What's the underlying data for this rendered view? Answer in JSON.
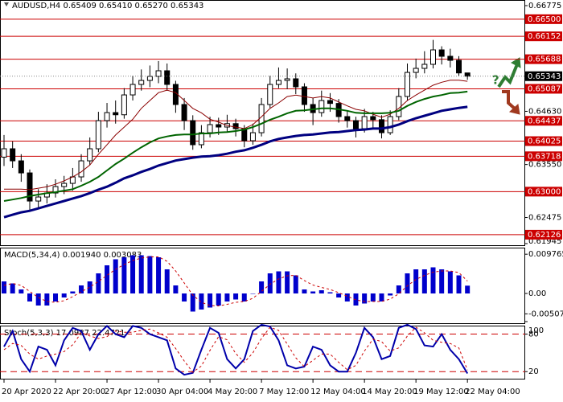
{
  "chart_data": [
    {
      "type": "candlestick",
      "title": "AUDUSD,H4  0.65409 0.65410 0.65270 0.65343",
      "annotation": "?",
      "categories": [
        "20 Apr 2020",
        null,
        null,
        null,
        null,
        null,
        "22 Apr 20:00",
        null,
        null,
        null,
        null,
        null,
        "27 Apr 12:00",
        null,
        null,
        null,
        null,
        null,
        "30 Apr 04:00",
        null,
        null,
        null,
        null,
        null,
        "4 May 20:00",
        null,
        null,
        null,
        null,
        null,
        "7 May 12:00",
        null,
        null,
        null,
        null,
        null,
        "12 May 04:00",
        null,
        null,
        null,
        null,
        null,
        "14 May 20:00",
        null,
        null,
        null,
        null,
        null,
        "19 May 12:00",
        null,
        null,
        null,
        null,
        null,
        "22 May 04:00"
      ],
      "open": [
        0.637,
        0.6387,
        0.63625,
        0.6338,
        0.62809,
        0.62891,
        0.62972,
        0.63103,
        0.63168,
        0.63299,
        0.63625,
        0.6387,
        0.64441,
        0.64604,
        0.6456,
        0.64963,
        0.65176,
        0.65257,
        0.65339,
        0.65453,
        0.65176,
        0.64768,
        0.64441,
        0.63952,
        0.64196,
        0.6436,
        0.64311,
        0.6438,
        0.64278,
        0.64033,
        0.64196,
        0.64768,
        0.65176,
        0.65257,
        0.6529,
        0.65127,
        0.64768,
        0.64604,
        0.64849,
        0.6479,
        0.64523,
        0.64441,
        0.64278,
        0.64523,
        0.6446,
        0.64196,
        0.64523,
        0.64931,
        0.6542,
        0.65502,
        0.65584,
        0.65877,
        0.65747,
        0.65665,
        0.65409
      ],
      "high": [
        0.6415,
        0.6402,
        0.6376,
        0.6345,
        0.6305,
        0.6315,
        0.6325,
        0.6332,
        0.6348,
        0.6376,
        0.641,
        0.6462,
        0.648,
        0.6485,
        0.651,
        0.6535,
        0.6548,
        0.6556,
        0.6565,
        0.656,
        0.6525,
        0.649,
        0.6455,
        0.6435,
        0.6452,
        0.645,
        0.6456,
        0.6448,
        0.6435,
        0.6438,
        0.649,
        0.6535,
        0.6552,
        0.655,
        0.654,
        0.652,
        0.649,
        0.6505,
        0.65,
        0.6488,
        0.6465,
        0.6452,
        0.6468,
        0.6462,
        0.6455,
        0.6465,
        0.651,
        0.656,
        0.657,
        0.6585,
        0.6608,
        0.6595,
        0.659,
        0.6575,
        0.6541
      ],
      "low": [
        0.6352,
        0.6348,
        0.632,
        0.626,
        0.6265,
        0.6276,
        0.6288,
        0.6295,
        0.6302,
        0.632,
        0.6354,
        0.638,
        0.643,
        0.6438,
        0.6448,
        0.6485,
        0.6505,
        0.6512,
        0.652,
        0.6505,
        0.646,
        0.6425,
        0.6385,
        0.6388,
        0.641,
        0.6415,
        0.642,
        0.6412,
        0.639,
        0.6395,
        0.6412,
        0.647,
        0.651,
        0.6508,
        0.6498,
        0.6462,
        0.6435,
        0.6452,
        0.6462,
        0.644,
        0.643,
        0.641,
        0.642,
        0.643,
        0.6408,
        0.6415,
        0.6445,
        0.6485,
        0.653,
        0.654,
        0.655,
        0.6558,
        0.6552,
        0.6535,
        0.6527
      ],
      "close": [
        0.6387,
        0.63625,
        0.6338,
        0.62809,
        0.62891,
        0.62972,
        0.63103,
        0.63168,
        0.63299,
        0.63625,
        0.6387,
        0.64441,
        0.64604,
        0.6456,
        0.64963,
        0.65176,
        0.65257,
        0.65339,
        0.65453,
        0.65176,
        0.64768,
        0.64441,
        0.63952,
        0.64196,
        0.6436,
        0.64311,
        0.6438,
        0.64278,
        0.64033,
        0.64196,
        0.64768,
        0.65176,
        0.65257,
        0.6529,
        0.65127,
        0.64768,
        0.64604,
        0.64849,
        0.6479,
        0.64523,
        0.64441,
        0.64278,
        0.64523,
        0.6446,
        0.64196,
        0.64523,
        0.64931,
        0.6542,
        0.65502,
        0.65584,
        0.65877,
        0.65747,
        0.65665,
        0.65409,
        0.65343
      ],
      "series": [
        {
          "color": "#8b0000",
          "values": [
            0.6305,
            0.6305,
            0.6305,
            0.6304,
            0.6307,
            0.631,
            0.6315,
            0.6322,
            0.633,
            0.634,
            0.6354,
            0.6376,
            0.6395,
            0.6415,
            0.6431,
            0.6447,
            0.6469,
            0.6485,
            0.6501,
            0.6506,
            0.6501,
            0.6485,
            0.6469,
            0.646,
            0.6447,
            0.6441,
            0.6434,
            0.6431,
            0.6428,
            0.6436,
            0.6452,
            0.6469,
            0.648,
            0.6493,
            0.6496,
            0.6493,
            0.649,
            0.6493,
            0.649,
            0.6482,
            0.6474,
            0.6467,
            0.6464,
            0.6457,
            0.6451,
            0.6457,
            0.6469,
            0.6485,
            0.6496,
            0.6506,
            0.6516,
            0.6522,
            0.6526,
            0.6526,
            0.6524
          ]
        },
        {
          "color": "#006400",
          "values": [
            0.6281,
            0.6284,
            0.6287,
            0.6291,
            0.6294,
            0.6297,
            0.6299,
            0.6302,
            0.6305,
            0.6312,
            0.632,
            0.633,
            0.6343,
            0.6356,
            0.6367,
            0.6379,
            0.639,
            0.64,
            0.6408,
            0.6412,
            0.6415,
            0.6416,
            0.6416,
            0.6418,
            0.6418,
            0.642,
            0.6421,
            0.6423,
            0.6426,
            0.6431,
            0.6438,
            0.6446,
            0.6452,
            0.6459,
            0.6464,
            0.6465,
            0.6467,
            0.6469,
            0.6469,
            0.6467,
            0.6464,
            0.646,
            0.6459,
            0.6459,
            0.6459,
            0.646,
            0.6464,
            0.6474,
            0.6482,
            0.6488,
            0.6493,
            0.6496,
            0.65,
            0.6501,
            0.6503
          ]
        },
        {
          "color": "#000080",
          "values": [
            0.6248,
            0.6253,
            0.6258,
            0.6261,
            0.6266,
            0.6271,
            0.6276,
            0.6281,
            0.6286,
            0.6291,
            0.6297,
            0.6304,
            0.631,
            0.6318,
            0.6327,
            0.6333,
            0.634,
            0.6346,
            0.6353,
            0.6358,
            0.6363,
            0.6366,
            0.6369,
            0.6371,
            0.6372,
            0.6374,
            0.6377,
            0.6381,
            0.6384,
            0.6389,
            0.6395,
            0.6402,
            0.6407,
            0.641,
            0.6413,
            0.6415,
            0.6416,
            0.6418,
            0.642,
            0.6421,
            0.6423,
            0.6425,
            0.6426,
            0.6428,
            0.6428,
            0.6431,
            0.6436,
            0.6443,
            0.6449,
            0.6454,
            0.6459,
            0.6464,
            0.6467,
            0.647,
            0.6472
          ]
        }
      ],
      "levels": [
        {
          "value": 0.665,
          "label": "0.66500"
        },
        0.66152,
        0.65688,
        0.65087,
        0.64437,
        0.64025,
        0.63718,
        {
          "value": 0.63,
          "label": "0.63000"
        },
        0.62126
      ],
      "level_color": "#cc0000",
      "last_price": 0.65343,
      "ylim": [
        0.61945,
        0.66775
      ],
      "yticks": [
        0.66775,
        {
          "value": 0.6463,
          "label": "0.64630"
        },
        {
          "value": 0.6355,
          "label": "0.63550"
        },
        0.62475,
        0.61945
      ]
    },
    {
      "type": "bar",
      "title": "MACD(5,34,4) 0.001940 0.003083",
      "color": "#0000cc",
      "values": [
        0.003,
        0.0025,
        0.001,
        -0.002,
        -0.003,
        -0.003,
        -0.002,
        -0.001,
        0.0005,
        0.002,
        0.003,
        0.005,
        0.007,
        0.0085,
        0.009,
        0.0095,
        0.0095,
        0.0093,
        0.009,
        0.006,
        0.002,
        -0.002,
        -0.0045,
        -0.004,
        -0.0035,
        -0.003,
        -0.002,
        -0.0015,
        -0.002,
        0.0,
        0.003,
        0.005,
        0.0055,
        0.0055,
        0.0045,
        0.001,
        0.0005,
        0.0008,
        0.0003,
        -0.001,
        -0.002,
        -0.003,
        -0.0025,
        -0.002,
        -0.002,
        -0.0005,
        0.002,
        0.005,
        0.006,
        0.006,
        0.0065,
        0.006,
        0.0055,
        0.0045,
        0.00194
      ],
      "signal_color": "#cc0000",
      "signal_values": [
        0.002,
        0.0025,
        0.002,
        0.0005,
        -0.001,
        -0.002,
        -0.0022,
        -0.0018,
        -0.0008,
        0.0004,
        0.0016,
        0.003,
        0.0045,
        0.006,
        0.0072,
        0.0082,
        0.0088,
        0.0091,
        0.0091,
        0.008,
        0.0056,
        0.0026,
        -0.0004,
        -0.0022,
        -0.003,
        -0.0031,
        -0.0027,
        -0.0022,
        -0.002,
        -0.0012,
        0.0005,
        0.0023,
        0.0036,
        0.0044,
        0.0045,
        0.0032,
        0.0021,
        0.0015,
        0.001,
        0.0002,
        -0.0007,
        -0.0016,
        -0.002,
        -0.002,
        -0.002,
        -0.0014,
        -0.0001,
        0.0019,
        0.0035,
        0.0045,
        0.0053,
        0.0056,
        0.0056,
        0.0052,
        0.003083
      ],
      "ylim": [
        -0.0074,
        0.0112
      ],
      "yticks": [
        0.009765,
        {
          "value": 0,
          "label": "0.00"
        },
        -0.00507
      ]
    },
    {
      "type": "line",
      "title": "Stoch(5,3,3) 17.0987 22.4721",
      "series": [
        {
          "color": "#0000aa",
          "values": [
            60,
            85,
            40,
            20,
            60,
            55,
            30,
            70,
            90,
            85,
            55,
            80,
            93,
            80,
            75,
            93,
            90,
            80,
            75,
            70,
            25,
            15,
            18,
            55,
            90,
            82,
            40,
            25,
            40,
            85,
            95,
            92,
            70,
            30,
            25,
            28,
            60,
            55,
            30,
            20,
            20,
            50,
            90,
            75,
            40,
            45,
            90,
            95,
            88,
            62,
            60,
            80,
            55,
            40,
            17.0987
          ]
        },
        {
          "color": "#cc0000",
          "dashed": true,
          "values": [
            55,
            65,
            62,
            48,
            40,
            45,
            48,
            52,
            63,
            82,
            77,
            73,
            76,
            85,
            83,
            83,
            86,
            88,
            82,
            75,
            57,
            37,
            19,
            29,
            54,
            76,
            71,
            49,
            35,
            50,
            73,
            91,
            86,
            64,
            42,
            28,
            38,
            48,
            48,
            35,
            23,
            30,
            53,
            72,
            68,
            53,
            58,
            77,
            91,
            82,
            70,
            67,
            65,
            58,
            22.4721
          ]
        }
      ],
      "levels": [
        20,
        80
      ],
      "level_color": "#cc0000",
      "ylim": [
        10,
        100
      ],
      "yticks": [
        20,
        80,
        100
      ]
    }
  ]
}
